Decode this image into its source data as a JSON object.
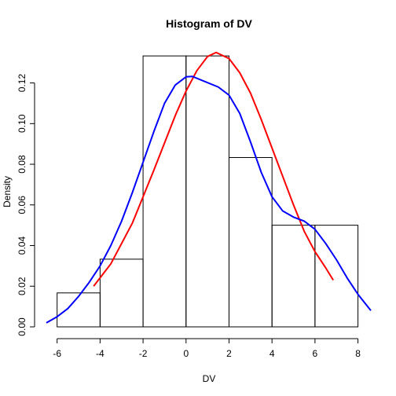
{
  "chart_data": {
    "type": "bar",
    "title": "Histogram of DV",
    "xlabel": "DV",
    "ylabel": "Density",
    "xlim": [
      -6.5,
      8.6
    ],
    "ylim": [
      0,
      0.138
    ],
    "x_ticks": [
      -6,
      -4,
      -2,
      0,
      2,
      4,
      6,
      8
    ],
    "y_ticks": [
      0.0,
      0.02,
      0.04,
      0.06,
      0.08,
      0.1,
      0.12
    ],
    "y_tick_labels": [
      "0.00",
      "0.02",
      "0.04",
      "0.06",
      "0.08",
      "0.10",
      "0.12"
    ],
    "bins": [
      {
        "start": -6,
        "end": -4,
        "density": 0.0167
      },
      {
        "start": -4,
        "end": -2,
        "density": 0.0333
      },
      {
        "start": -2,
        "end": 0,
        "density": 0.1333
      },
      {
        "start": 0,
        "end": 2,
        "density": 0.1333
      },
      {
        "start": 2,
        "end": 4,
        "density": 0.0833
      },
      {
        "start": 4,
        "end": 6,
        "density": 0.05
      },
      {
        "start": 6,
        "end": 8,
        "density": 0.05
      }
    ],
    "series": [
      {
        "type": "line",
        "color": "#ff0000",
        "x": [
          -4.3,
          -3.5,
          -2.5,
          -1.5,
          -0.5,
          0.0,
          0.5,
          1.0,
          1.4,
          2.0,
          2.5,
          3.0,
          3.5,
          4.0,
          4.5,
          5.0,
          5.5,
          6.0,
          6.5,
          6.85
        ],
        "y": [
          0.02,
          0.031,
          0.051,
          0.077,
          0.104,
          0.116,
          0.126,
          0.133,
          0.135,
          0.132,
          0.125,
          0.115,
          0.102,
          0.088,
          0.074,
          0.06,
          0.047,
          0.037,
          0.029,
          0.023
        ]
      },
      {
        "type": "line",
        "color": "#0000ff",
        "x": [
          -6.5,
          -6.0,
          -5.5,
          -5.0,
          -4.5,
          -4.0,
          -3.5,
          -3.0,
          -2.5,
          -2.0,
          -1.5,
          -1.0,
          -0.5,
          0.0,
          0.3,
          0.8,
          1.5,
          2.0,
          2.5,
          3.0,
          3.5,
          4.0,
          4.5,
          5.0,
          5.5,
          6.0,
          6.5,
          7.0,
          7.5,
          8.0,
          8.6
        ],
        "y": [
          0.002,
          0.005,
          0.009,
          0.015,
          0.022,
          0.03,
          0.04,
          0.052,
          0.066,
          0.081,
          0.096,
          0.11,
          0.119,
          0.123,
          0.1232,
          0.121,
          0.118,
          0.114,
          0.105,
          0.091,
          0.076,
          0.064,
          0.057,
          0.054,
          0.052,
          0.048,
          0.041,
          0.033,
          0.024,
          0.016,
          0.008
        ]
      }
    ]
  }
}
